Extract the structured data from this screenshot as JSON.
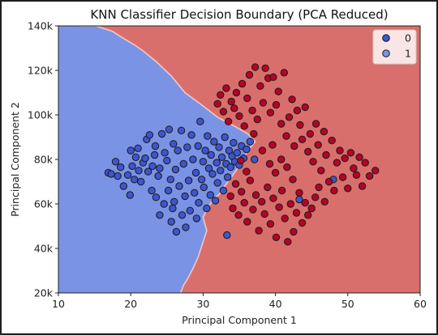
{
  "colors": {
    "region_0": "#7b93e4",
    "region_1": "#d96f6c",
    "point_0": "#3e55cc",
    "point_1": "#b40426",
    "edge": "#1a1a1a",
    "background": "#1e1e1e"
  },
  "chart_data": {
    "type": "scatter",
    "title": "KNN Classifier Decision Boundary (PCA Reduced)",
    "xlabel": "Principal Component 1",
    "ylabel": "Principal Component 2",
    "xlim": [
      10,
      60
    ],
    "ylim": [
      20000,
      140000
    ],
    "xticks": [
      10,
      20,
      30,
      40,
      50,
      60
    ],
    "xtick_labels": [
      "10",
      "20",
      "30",
      "40",
      "50",
      "60"
    ],
    "yticks": [
      20000,
      40000,
      60000,
      80000,
      100000,
      120000,
      140000
    ],
    "ytick_labels": [
      "20k",
      "40k",
      "60k",
      "80k",
      "100k",
      "120k",
      "140k"
    ],
    "grid": false,
    "legend_position": "top-right",
    "legend": [
      "0",
      "1"
    ],
    "decision_boundary": [
      [
        12.9,
        140000
      ],
      [
        15.2,
        140000
      ],
      [
        17.5,
        137500
      ],
      [
        18.7,
        135000
      ],
      [
        20.5,
        131500
      ],
      [
        21.8,
        128500
      ],
      [
        23.5,
        124000
      ],
      [
        25.6,
        117500
      ],
      [
        27.5,
        110000
      ],
      [
        29.8,
        104500
      ],
      [
        32.0,
        99000
      ],
      [
        34.3,
        95000
      ],
      [
        36.2,
        91500
      ],
      [
        37.2,
        88000
      ],
      [
        36.1,
        83500
      ],
      [
        35.2,
        78000
      ],
      [
        34.0,
        72500
      ],
      [
        33.0,
        68000
      ],
      [
        32.3,
        64500
      ],
      [
        31.4,
        62000
      ],
      [
        30.6,
        58000
      ],
      [
        30.0,
        54000
      ],
      [
        30.5,
        48000
      ],
      [
        30.1,
        44000
      ],
      [
        29.3,
        36000
      ],
      [
        28.6,
        31000
      ],
      [
        27.8,
        26000
      ],
      [
        27.3,
        23500
      ],
      [
        26.9,
        20000
      ]
    ],
    "series": [
      {
        "name": "0",
        "points": [
          [
            16.9,
            74000
          ],
          [
            17.3,
            73500
          ],
          [
            17.9,
            79000
          ],
          [
            18.2,
            72500
          ],
          [
            18.6,
            76500
          ],
          [
            19.0,
            68000
          ],
          [
            19.6,
            73000
          ],
          [
            19.9,
            64000
          ],
          [
            20.0,
            84000
          ],
          [
            20.2,
            77000
          ],
          [
            20.5,
            71000
          ],
          [
            20.7,
            81000
          ],
          [
            21.0,
            85000
          ],
          [
            21.1,
            75000
          ],
          [
            21.4,
            70000
          ],
          [
            21.7,
            78500
          ],
          [
            22.0,
            80500
          ],
          [
            22.2,
            89000
          ],
          [
            22.4,
            74500
          ],
          [
            22.6,
            91000
          ],
          [
            22.9,
            66000
          ],
          [
            23.0,
            77000
          ],
          [
            23.3,
            82000
          ],
          [
            23.4,
            86000
          ],
          [
            23.5,
            63000
          ],
          [
            23.8,
            72500
          ],
          [
            24.0,
            76000
          ],
          [
            24.0,
            55000
          ],
          [
            24.3,
            91500
          ],
          [
            24.6,
            60000
          ],
          [
            24.7,
            83000
          ],
          [
            25.0,
            79500
          ],
          [
            25.2,
            66000
          ],
          [
            25.3,
            93500
          ],
          [
            25.5,
            71000
          ],
          [
            25.6,
            52000
          ],
          [
            25.8,
            58000
          ],
          [
            25.9,
            87000
          ],
          [
            26.0,
            61000
          ],
          [
            26.2,
            75500
          ],
          [
            26.3,
            47500
          ],
          [
            26.5,
            84000
          ],
          [
            26.7,
            68000
          ],
          [
            27.0,
            93000
          ],
          [
            27.1,
            55000
          ],
          [
            27.3,
            78000
          ],
          [
            27.5,
            63500
          ],
          [
            27.6,
            49500
          ],
          [
            27.8,
            85500
          ],
          [
            28.0,
            70500
          ],
          [
            28.2,
            57000
          ],
          [
            28.4,
            91000
          ],
          [
            28.6,
            80000
          ],
          [
            28.8,
            65000
          ],
          [
            29.0,
            74000
          ],
          [
            29.1,
            53500
          ],
          [
            29.3,
            86000
          ],
          [
            29.4,
            60500
          ],
          [
            29.6,
            97000
          ],
          [
            29.8,
            71000
          ],
          [
            30.0,
            79000
          ],
          [
            30.1,
            67500
          ],
          [
            30.3,
            84000
          ],
          [
            30.5,
            58000
          ],
          [
            30.6,
            90500
          ],
          [
            30.8,
            76000
          ],
          [
            31.0,
            64000
          ],
          [
            31.1,
            82000
          ],
          [
            31.3,
            73500
          ],
          [
            31.5,
            88000
          ],
          [
            31.7,
            61500
          ],
          [
            31.9,
            78500
          ],
          [
            32.0,
            69500
          ],
          [
            32.2,
            85500
          ],
          [
            32.4,
            75000
          ],
          [
            32.6,
            81000
          ],
          [
            32.8,
            66000
          ],
          [
            33.0,
            90000
          ],
          [
            33.2,
            78000
          ],
          [
            33.4,
            72000
          ],
          [
            33.6,
            84000
          ],
          [
            33.8,
            76500
          ],
          [
            34.0,
            81500
          ],
          [
            34.2,
            87500
          ],
          [
            34.4,
            79000
          ],
          [
            34.7,
            83000
          ],
          [
            35.0,
            77500
          ],
          [
            35.3,
            86000
          ],
          [
            35.6,
            80500
          ],
          [
            36.0,
            84500
          ],
          [
            36.5,
            88000
          ],
          [
            37.1,
            80000
          ],
          [
            33.3,
            46000
          ],
          [
            43.3,
            62000
          ],
          [
            48.0,
            71000
          ]
        ]
      },
      {
        "name": "1",
        "points": [
          [
            32.0,
            105000
          ],
          [
            32.4,
            109000
          ],
          [
            32.8,
            101500
          ],
          [
            33.2,
            112000
          ],
          [
            33.5,
            97000
          ],
          [
            33.9,
            106000
          ],
          [
            34.3,
            103000
          ],
          [
            34.6,
            110000
          ],
          [
            35.0,
            99500
          ],
          [
            35.4,
            114000
          ],
          [
            35.7,
            95000
          ],
          [
            36.1,
            107500
          ],
          [
            36.4,
            118000
          ],
          [
            36.8,
            102000
          ],
          [
            37.2,
            121500
          ],
          [
            37.5,
            98000
          ],
          [
            37.9,
            113000
          ],
          [
            38.3,
            105500
          ],
          [
            38.6,
            121000
          ],
          [
            39.0,
            116500
          ],
          [
            39.3,
            101000
          ],
          [
            39.7,
            117000
          ],
          [
            40.1,
            104500
          ],
          [
            40.4,
            110500
          ],
          [
            40.8,
            96000
          ],
          [
            41.2,
            119000
          ],
          [
            41.5,
            90500
          ],
          [
            41.9,
            99000
          ],
          [
            42.3,
            107000
          ],
          [
            42.6,
            86000
          ],
          [
            43.0,
            102000
          ],
          [
            43.4,
            95500
          ],
          [
            43.7,
            89000
          ],
          [
            44.1,
            103500
          ],
          [
            44.5,
            83500
          ],
          [
            44.8,
            91500
          ],
          [
            45.2,
            79000
          ],
          [
            45.6,
            96000
          ],
          [
            45.9,
            86500
          ],
          [
            46.3,
            75000
          ],
          [
            46.7,
            92500
          ],
          [
            47.0,
            82000
          ],
          [
            47.4,
            70000
          ],
          [
            47.8,
            88500
          ],
          [
            48.1,
            66000
          ],
          [
            48.5,
            78500
          ],
          [
            48.9,
            84000
          ],
          [
            49.3,
            72000
          ],
          [
            49.6,
            80500
          ],
          [
            50.0,
            67000
          ],
          [
            50.4,
            83000
          ],
          [
            50.8,
            76000
          ],
          [
            51.2,
            73000
          ],
          [
            51.6,
            81000
          ],
          [
            52.0,
            68000
          ],
          [
            52.4,
            78500
          ],
          [
            53.0,
            72500
          ],
          [
            53.8,
            75000
          ],
          [
            33.8,
            63500
          ],
          [
            34.1,
            58000
          ],
          [
            34.5,
            69000
          ],
          [
            34.9,
            55000
          ],
          [
            35.3,
            65500
          ],
          [
            35.7,
            60500
          ],
          [
            36.1,
            52000
          ],
          [
            36.5,
            70500
          ],
          [
            36.9,
            57500
          ],
          [
            37.3,
            64000
          ],
          [
            37.7,
            48000
          ],
          [
            38.1,
            61000
          ],
          [
            38.5,
            55500
          ],
          [
            38.9,
            67500
          ],
          [
            39.3,
            51000
          ],
          [
            39.7,
            62500
          ],
          [
            40.1,
            45000
          ],
          [
            40.5,
            58500
          ],
          [
            40.9,
            66000
          ],
          [
            41.3,
            53500
          ],
          [
            41.7,
            43000
          ],
          [
            42.1,
            60000
          ],
          [
            42.5,
            47500
          ],
          [
            42.9,
            56000
          ],
          [
            43.3,
            65000
          ],
          [
            43.7,
            51500
          ],
          [
            44.1,
            60500
          ],
          [
            44.5,
            55000
          ],
          [
            45.0,
            58000
          ],
          [
            45.5,
            63000
          ],
          [
            46.0,
            67500
          ],
          [
            46.8,
            61000
          ],
          [
            37.0,
            91500
          ],
          [
            38.2,
            84000
          ],
          [
            39.2,
            78000
          ],
          [
            40.0,
            74000
          ],
          [
            40.8,
            80000
          ],
          [
            41.6,
            76500
          ],
          [
            42.4,
            71000
          ],
          [
            39.6,
            86500
          ],
          [
            36.0,
            74500
          ],
          [
            35.2,
            79500
          ]
        ]
      }
    ]
  }
}
